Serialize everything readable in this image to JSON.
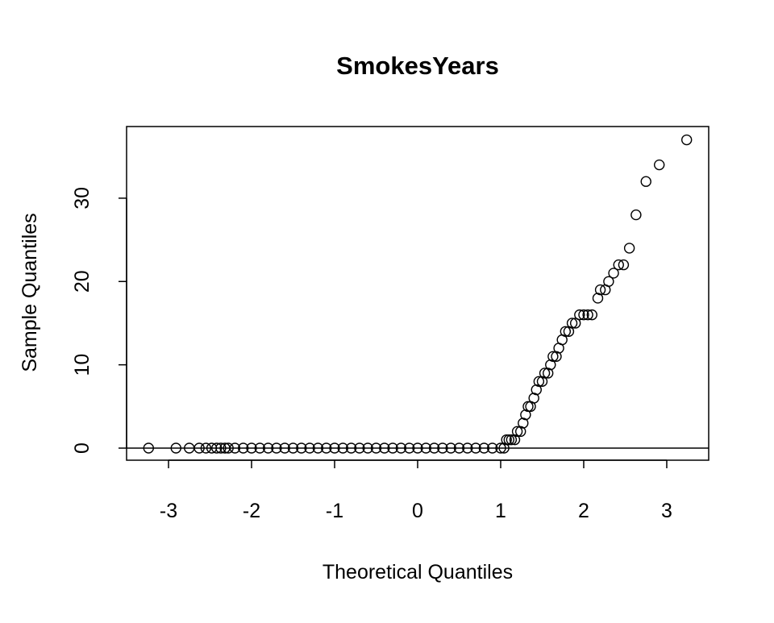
{
  "chart_data": {
    "type": "scatter",
    "title": "SmokesYears",
    "x_label": "Theoretical Quantiles",
    "y_label": "Sample Quantiles",
    "x": [
      -3.24,
      -2.91,
      -2.75,
      -2.63,
      -2.55,
      -2.48,
      -2.42,
      -2.37,
      -2.32,
      -2.28,
      -2.2,
      -2.1,
      -2.0,
      -1.9,
      -1.8,
      -1.7,
      -1.6,
      -1.5,
      -1.4,
      -1.3,
      -1.2,
      -1.1,
      -1.0,
      -0.9,
      -0.8,
      -0.7,
      -0.6,
      -0.5,
      -0.4,
      -0.3,
      -0.2,
      -0.1,
      0,
      0.1,
      0.2,
      0.3,
      0.4,
      0.5,
      0.6,
      0.7,
      0.8,
      0.9,
      1.0,
      1.04,
      1.07,
      1.1,
      1.13,
      1.17,
      1.2,
      1.24,
      1.27,
      1.3,
      1.33,
      1.36,
      1.4,
      1.43,
      1.46,
      1.5,
      1.53,
      1.57,
      1.6,
      1.63,
      1.67,
      1.7,
      1.74,
      1.78,
      1.82,
      1.86,
      1.9,
      1.95,
      2.0,
      2.05,
      2.1,
      2.17,
      2.2,
      2.26,
      2.3,
      2.36,
      2.42,
      2.48,
      2.55,
      2.63,
      2.75,
      2.91,
      3.24
    ],
    "values": [
      0,
      0,
      0,
      0,
      0,
      0,
      0,
      0,
      0,
      0,
      0,
      0,
      0,
      0,
      0,
      0,
      0,
      0,
      0,
      0,
      0,
      0,
      0,
      0,
      0,
      0,
      0,
      0,
      0,
      0,
      0,
      0,
      0,
      0,
      0,
      0,
      0,
      0,
      0,
      0,
      0,
      0,
      0,
      0,
      1,
      1,
      1,
      1,
      2,
      2,
      3,
      4,
      5,
      5,
      6,
      7,
      8,
      8,
      9,
      9,
      10,
      11,
      11,
      12,
      13,
      14,
      14,
      15,
      15,
      16,
      16,
      16,
      16,
      18,
      19,
      19,
      20,
      21,
      22,
      22,
      24,
      28,
      32,
      34,
      37
    ],
    "color": "#000000",
    "qqline": {
      "intercept": 0,
      "slope": 0
    },
    "xlim": [
      -3.505,
      3.505
    ],
    "ylim": [
      -1.45,
      38.6
    ],
    "xticks": [
      -3,
      -2,
      -1,
      0,
      1,
      2,
      3
    ],
    "yticks": [
      0,
      10,
      20,
      30
    ]
  }
}
